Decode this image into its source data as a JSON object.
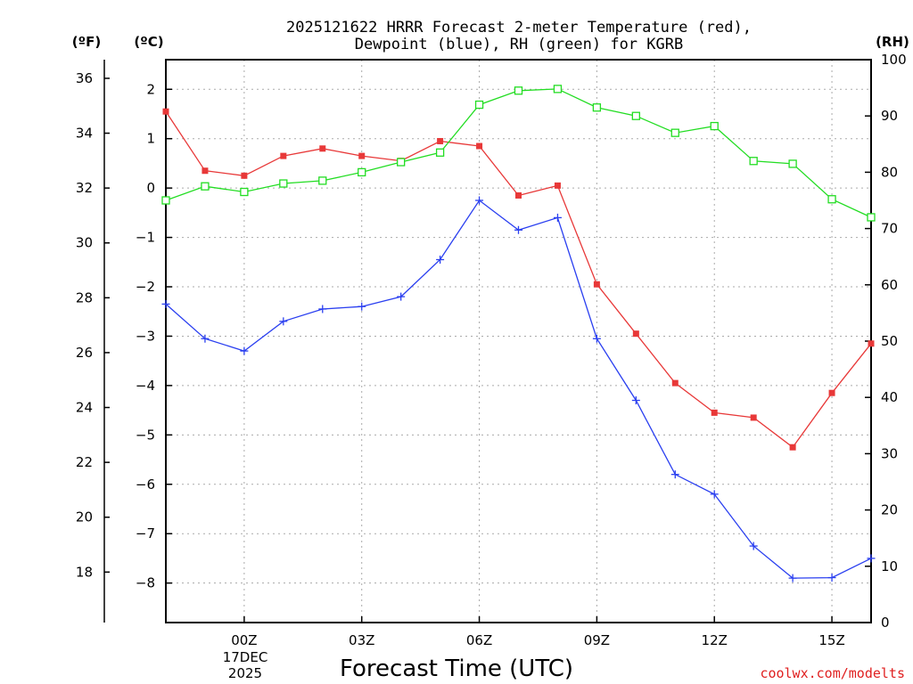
{
  "chart_data": {
    "type": "line",
    "title_line1": "2025121622 HRRR Forecast 2-meter Temperature (red),",
    "title_line2": "Dewpoint (blue), RH (green) for KGRB",
    "unit_f": "(ºF)",
    "unit_c": "(ºC)",
    "unit_rh": "(RH)",
    "xlabel": "Forecast Time (UTC)",
    "credit": "coolwx.com/modelts",
    "x_hours": [
      -1,
      0,
      1,
      2,
      3,
      4,
      5,
      6,
      7,
      8,
      9,
      10,
      11,
      12,
      13,
      14,
      15,
      16,
      17
    ],
    "x_ticks": [
      {
        "hour": 1,
        "label": "00Z"
      },
      {
        "hour": 4,
        "label": "03Z"
      },
      {
        "hour": 7,
        "label": "06Z"
      },
      {
        "hour": 10,
        "label": "09Z"
      },
      {
        "hour": 13,
        "label": "12Z"
      },
      {
        "hour": 16,
        "label": "15Z"
      }
    ],
    "date_labels": [
      "17DEC",
      "2025"
    ],
    "xlim": [
      -1,
      17
    ],
    "ylim_c": [
      -8.8,
      2.6
    ],
    "y_ticks_c": [
      -8,
      -7,
      -6,
      -5,
      -4,
      -3,
      -2,
      -1,
      0,
      1,
      2
    ],
    "y_ticks_c_labels": [
      "−8",
      "−7",
      "−6",
      "−5",
      "−4",
      "−3",
      "−2",
      "−1",
      "0",
      "1",
      "2"
    ],
    "y_ticks_f": [
      18,
      20,
      22,
      24,
      26,
      28,
      30,
      32,
      34,
      36
    ],
    "y_ticks_f_labels": [
      "18",
      "20",
      "22",
      "24",
      "26",
      "28",
      "30",
      "32",
      "34",
      "36"
    ],
    "ylim_rh": [
      0,
      100
    ],
    "y_ticks_rh": [
      0,
      10,
      20,
      30,
      40,
      50,
      60,
      70,
      80,
      90,
      100
    ],
    "y_ticks_rh_labels": [
      "0",
      "10",
      "20",
      "30",
      "40",
      "50",
      "60",
      "70",
      "80",
      "90",
      "100"
    ],
    "series": [
      {
        "name": "Temperature",
        "axis": "c",
        "color": "#e83838",
        "marker": "filled-square",
        "values": [
          1.55,
          0.35,
          0.25,
          0.65,
          0.8,
          0.65,
          0.55,
          0.95,
          0.85,
          -0.15,
          0.05,
          -1.95,
          -2.95,
          -3.95,
          -4.55,
          -4.65,
          -5.25,
          -4.15,
          -3.15
        ]
      },
      {
        "name": "Dewpoint",
        "axis": "c",
        "color": "#2a3ff0",
        "marker": "plus",
        "values": [
          -2.35,
          -3.05,
          -3.3,
          -2.7,
          -2.45,
          -2.4,
          -2.2,
          -1.45,
          -0.25,
          -0.85,
          -0.6,
          -3.05,
          -4.3,
          -5.8,
          -6.2,
          -7.25,
          -7.9,
          -7.89,
          -7.5
        ]
      },
      {
        "name": "RH",
        "axis": "rh",
        "color": "#22dd22",
        "marker": "open-square",
        "values": [
          75,
          77.5,
          76.5,
          78,
          78.5,
          80,
          81.8,
          83.5,
          92,
          94.5,
          94.8,
          91.5,
          90,
          87,
          88.2,
          82,
          81.5,
          75.2,
          72
        ]
      }
    ]
  }
}
